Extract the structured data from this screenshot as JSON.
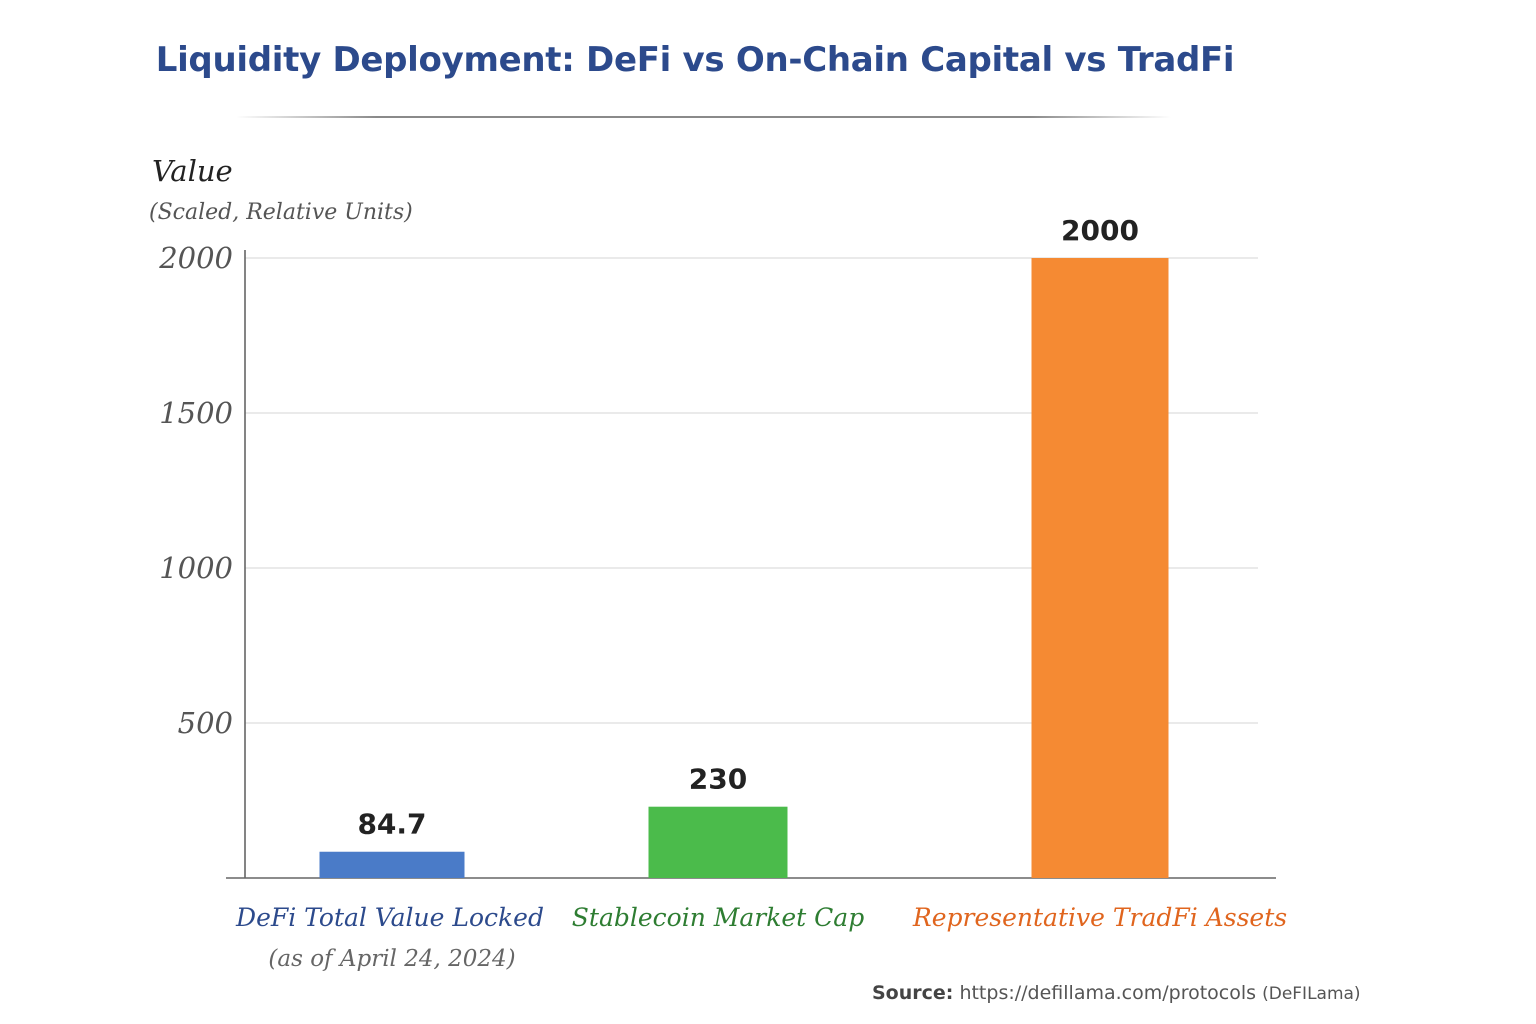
{
  "chart_data": {
    "type": "bar",
    "title": "Liquidity Deployment: DeFi vs On-Chain Capital vs TradFi",
    "ylabel": "Value",
    "ylabel_sub": "(Scaled, Relative Units)",
    "xlabel": "",
    "ylim": [
      0,
      2000
    ],
    "yticks": [
      "500",
      "1000",
      "1500",
      "2000"
    ],
    "grid": true,
    "legend": "none",
    "categories": [
      "DeFi Total Value Locked",
      "Stablecoin Market Cap",
      "Representative TradFi Assets"
    ],
    "category_sublabels": [
      "(as of April 24, 2024)",
      "",
      ""
    ],
    "values": [
      84.7,
      230,
      2000
    ],
    "value_labels": [
      "84.7",
      "230",
      "2000"
    ],
    "colors": [
      "#4a7bc8",
      "#4bbb4b",
      "#f58a33"
    ],
    "label_colors": [
      "#2c4a8c",
      "#2e7d32",
      "#e0651e"
    ]
  },
  "source": {
    "key": "Source:",
    "url": "https://defillama.com/protocols",
    "note": "(DeFILama)"
  }
}
